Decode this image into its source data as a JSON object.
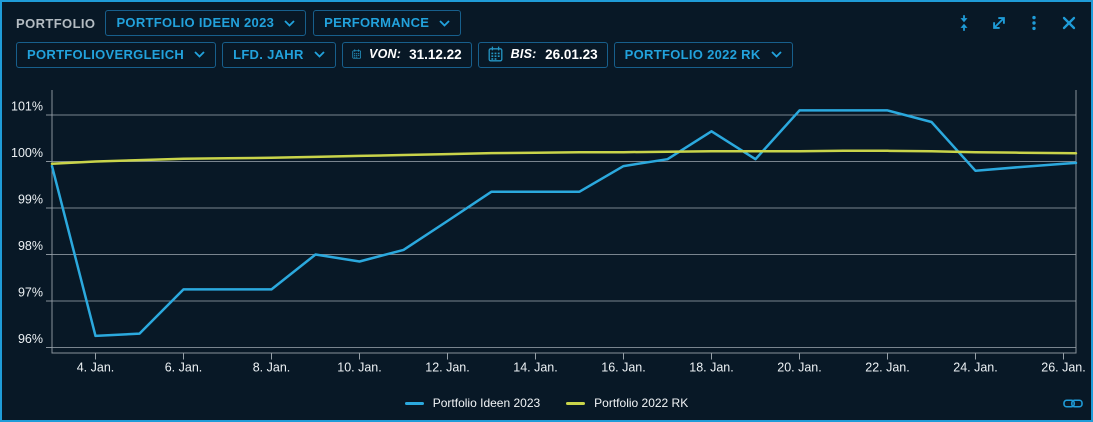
{
  "widget": {
    "title": "PORTFOLIO"
  },
  "header": {
    "portfolio_dropdown": "PORTFOLIO IDEEN 2023",
    "view_dropdown": "PERFORMANCE",
    "window_icons": [
      "collapse-vertical-icon",
      "expand-icon",
      "kebab-menu-icon",
      "close-icon"
    ]
  },
  "toolbar": {
    "comparison_dropdown": "PORTFOLIOVERGLEICH",
    "period_dropdown": "LFD. JAHR",
    "from_label": "VON:",
    "from_value": "31.12.22",
    "to_label": "BIS:",
    "to_value": "26.01.23",
    "benchmark_dropdown": "PORTFOLIO 2022 RK"
  },
  "chart_data": {
    "type": "line",
    "x_unit": "day of January 2023",
    "x": [
      3,
      4,
      5,
      6,
      7,
      8,
      9,
      10,
      11,
      12,
      13,
      14,
      15,
      16,
      17,
      18,
      19,
      20,
      21,
      22,
      23,
      24,
      25,
      26
    ],
    "series": [
      {
        "name": "Portfolio Ideen 2023",
        "color": "#2BA9DE",
        "values": [
          99.9,
          96.25,
          96.3,
          97.25,
          97.25,
          97.25,
          98.0,
          97.85,
          98.1,
          98.72,
          99.35,
          99.35,
          99.35,
          99.9,
          100.05,
          100.65,
          100.05,
          101.1,
          101.1,
          101.1,
          100.85,
          99.8,
          99.88,
          99.95
        ]
      },
      {
        "name": "Portfolio 2022 RK",
        "color": "#C9D44A",
        "values": [
          99.95,
          100.0,
          100.03,
          100.06,
          100.07,
          100.08,
          100.1,
          100.12,
          100.14,
          100.16,
          100.18,
          100.19,
          100.2,
          100.2,
          100.21,
          100.22,
          100.22,
          100.22,
          100.23,
          100.23,
          100.22,
          100.2,
          100.19,
          100.18
        ]
      }
    ],
    "x_ticks": [
      {
        "day": 4,
        "label": "4. Jan."
      },
      {
        "day": 6,
        "label": "6. Jan."
      },
      {
        "day": 8,
        "label": "8. Jan."
      },
      {
        "day": 10,
        "label": "10. Jan."
      },
      {
        "day": 12,
        "label": "12. Jan."
      },
      {
        "day": 14,
        "label": "14. Jan."
      },
      {
        "day": 16,
        "label": "16. Jan."
      },
      {
        "day": 18,
        "label": "18. Jan."
      },
      {
        "day": 20,
        "label": "20. Jan."
      },
      {
        "day": 22,
        "label": "22. Jan."
      },
      {
        "day": 24,
        "label": "24. Jan."
      },
      {
        "day": 26,
        "label": "26. Jan."
      }
    ],
    "y_ticks": [
      {
        "value": 96,
        "label": "96%"
      },
      {
        "value": 97,
        "label": "97%"
      },
      {
        "value": 98,
        "label": "98%"
      },
      {
        "value": 99,
        "label": "99%"
      },
      {
        "value": 100,
        "label": "100%"
      },
      {
        "value": 101,
        "label": "101%"
      }
    ],
    "ylim": [
      95.85,
      101.5
    ],
    "xlim": [
      3,
      26.28
    ],
    "grid": "horizontal",
    "legend_position": "bottom-center"
  },
  "colors": {
    "accent": "#1F9CD8",
    "dropdown_text": "#22A2DC",
    "dropdown_border": "#175F8C",
    "background": "#081826",
    "grid": "#96A0A8",
    "axis_text": "#ECF1F4",
    "title_text": "#B4BCC2"
  },
  "icons": {
    "calendar": "calendar-icon",
    "link": "link-icon"
  }
}
